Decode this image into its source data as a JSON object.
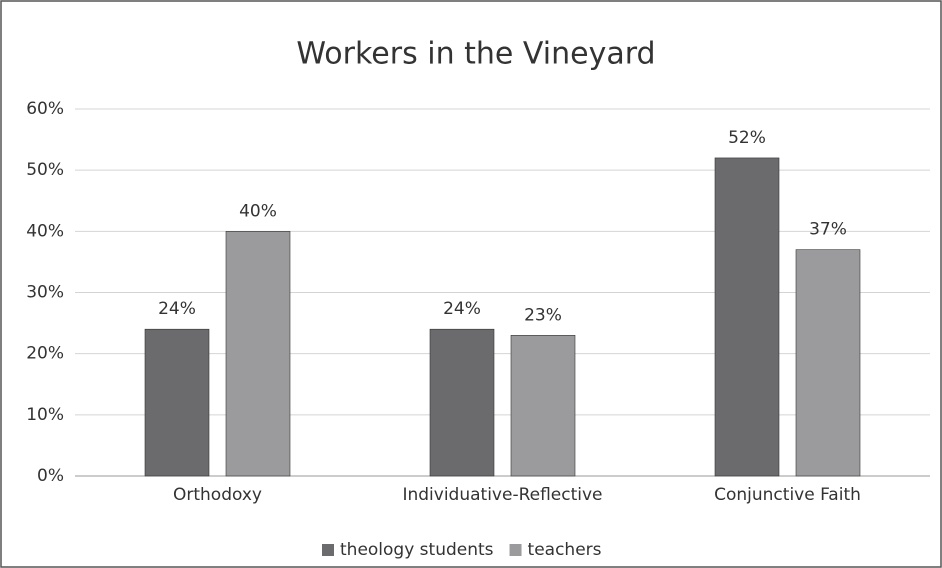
{
  "chart_data": {
    "type": "bar",
    "title": "Workers in the Vineyard",
    "categories": [
      "Orthodoxy",
      "Individuative-Reflective",
      "Conjunctive Faith"
    ],
    "series": [
      {
        "name": "theology students",
        "color": "#6b6b6e",
        "values": [
          24,
          24,
          52
        ],
        "value_labels": [
          "24%",
          "24%",
          "52%"
        ]
      },
      {
        "name": "teachers",
        "color": "#9b9b9d",
        "values": [
          40,
          23,
          37
        ],
        "value_labels": [
          "40%",
          "23%",
          "37%"
        ]
      }
    ],
    "ylim": [
      0,
      60
    ],
    "yticks": [
      {
        "value": 0,
        "label": "0%"
      },
      {
        "value": 10,
        "label": "10%"
      },
      {
        "value": 20,
        "label": "20%"
      },
      {
        "value": 30,
        "label": "30%"
      },
      {
        "value": 40,
        "label": "40%"
      },
      {
        "value": 50,
        "label": "50%"
      },
      {
        "value": 60,
        "label": "60%"
      }
    ],
    "grid": true,
    "legend": "bottom"
  }
}
